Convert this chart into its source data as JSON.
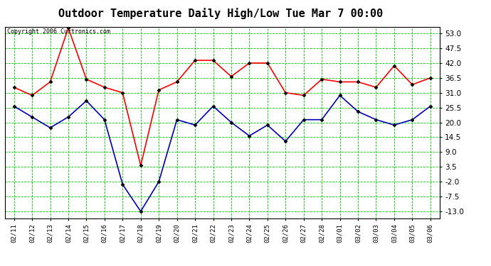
{
  "title": "Outdoor Temperature Daily High/Low Tue Mar 7 00:00",
  "copyright": "Copyright 2006 Curtronics.com",
  "dates": [
    "02/11",
    "02/12",
    "02/13",
    "02/14",
    "02/15",
    "02/16",
    "02/17",
    "02/18",
    "02/19",
    "02/20",
    "02/21",
    "02/22",
    "02/23",
    "02/24",
    "02/25",
    "02/26",
    "02/27",
    "02/28",
    "03/01",
    "03/02",
    "03/03",
    "03/04",
    "03/05",
    "03/06"
  ],
  "high": [
    33,
    30,
    35,
    55,
    36,
    33,
    31,
    4,
    32,
    35,
    43,
    43,
    37,
    42,
    42,
    31,
    30,
    36,
    35,
    35,
    33,
    41,
    34,
    36.5
  ],
  "low": [
    26,
    22,
    18,
    22,
    28,
    21,
    -3,
    -13,
    -2,
    21,
    19,
    26,
    20,
    15,
    19,
    13,
    21,
    21,
    30,
    24,
    21,
    19,
    21,
    26
  ],
  "high_color": "#ff0000",
  "low_color": "#0000bb",
  "grid_color": "#00cc00",
  "background_color": "#ffffff",
  "plot_background": "#ffffff",
  "title_fontsize": 11,
  "copyright_fontsize": 6,
  "ytick_fontsize": 7.5,
  "xtick_fontsize": 6.5,
  "yticks": [
    -13.0,
    -7.5,
    -2.0,
    3.5,
    9.0,
    14.5,
    20.0,
    25.5,
    31.0,
    36.5,
    42.0,
    47.5,
    53.0
  ],
  "ylim": [
    -15.5,
    55.5
  ],
  "marker": "D",
  "marker_size": 2.5,
  "linewidth": 1.2
}
